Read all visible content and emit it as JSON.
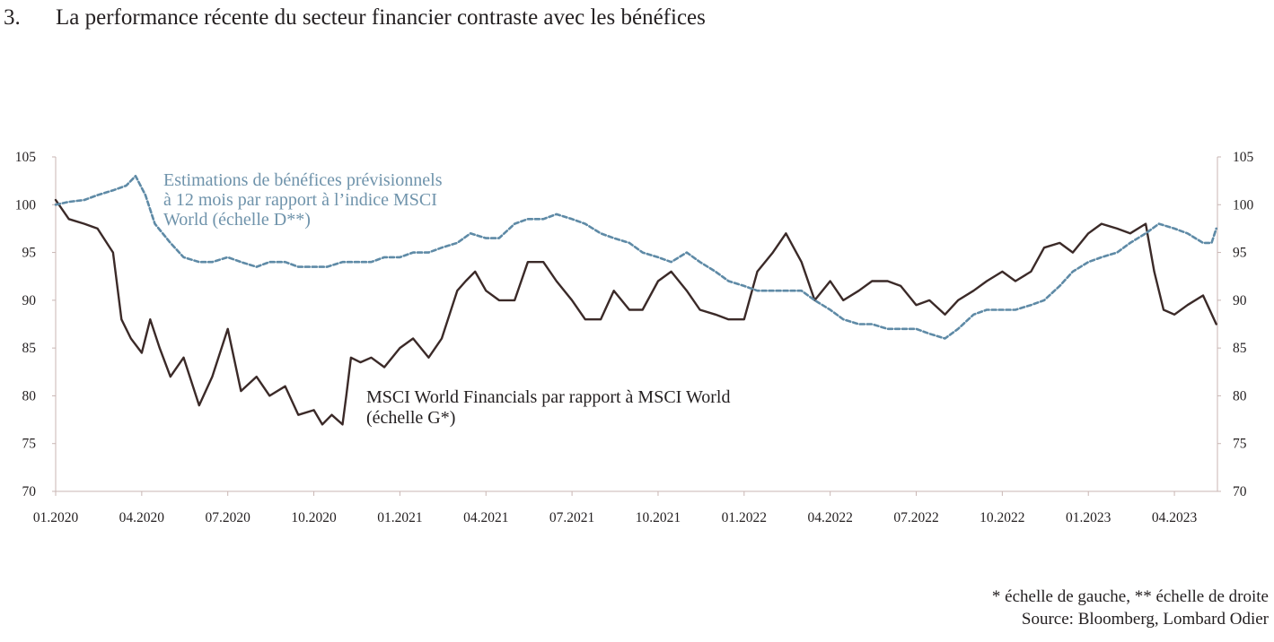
{
  "heading": {
    "number": "3.",
    "title": "La performance récente du secteur financier contraste avec les bénéfices"
  },
  "chart_data": {
    "type": "line",
    "title": "La performance récente du secteur financier contraste avec les bénéfices",
    "x_ticks": [
      "01.2020",
      "04.2020",
      "07.2020",
      "10.2020",
      "01.2021",
      "04.2021",
      "07.2021",
      "10.2021",
      "01.2022",
      "04.2022",
      "07.2022",
      "10.2022",
      "01.2023",
      "04.2023"
    ],
    "x_range": [
      "2020-01",
      "2023-05"
    ],
    "ylim_left": [
      70,
      105
    ],
    "ylim_right": [
      70,
      105
    ],
    "y_ticks_left": [
      70,
      75,
      80,
      85,
      90,
      95,
      100,
      105
    ],
    "y_ticks_right": [
      70,
      75,
      80,
      85,
      90,
      95,
      100,
      105
    ],
    "grid": false,
    "annotations": {
      "estimations": [
        "Estimations de bénéfices prévisionnels",
        "à 12 mois par rapport à l’indice MSCI",
        "World (échelle D**)"
      ],
      "financials": [
        "MSCI World Financials par rapport à MSCI World",
        "(échelle G*)"
      ]
    },
    "series": [
      {
        "axis": "left",
        "color": "#3b2a28",
        "style": "solid",
        "x": [
          "2020-01-01",
          "2020-01-15",
          "2020-02-01",
          "2020-02-15",
          "2020-03-01",
          "2020-03-10",
          "2020-03-20",
          "2020-04-01",
          "2020-04-10",
          "2020-04-20",
          "2020-05-01",
          "2020-05-15",
          "2020-06-01",
          "2020-06-15",
          "2020-07-01",
          "2020-07-15",
          "2020-08-01",
          "2020-08-15",
          "2020-09-01",
          "2020-09-15",
          "2020-10-01",
          "2020-10-10",
          "2020-10-20",
          "2020-11-01",
          "2020-11-05",
          "2020-11-10",
          "2020-11-20",
          "2020-12-01",
          "2020-12-15",
          "2021-01-01",
          "2021-01-15",
          "2021-02-01",
          "2021-02-15",
          "2021-03-01",
          "2021-03-10",
          "2021-03-20",
          "2021-04-01",
          "2021-04-15",
          "2021-05-01",
          "2021-05-15",
          "2021-06-01",
          "2021-06-15",
          "2021-07-01",
          "2021-07-15",
          "2021-08-01",
          "2021-08-15",
          "2021-09-01",
          "2021-09-15",
          "2021-10-01",
          "2021-10-15",
          "2021-11-01",
          "2021-11-15",
          "2021-12-01",
          "2021-12-15",
          "2022-01-01",
          "2022-01-15",
          "2022-02-01",
          "2022-02-15",
          "2022-03-01",
          "2022-03-15",
          "2022-04-01",
          "2022-04-15",
          "2022-05-01",
          "2022-05-15",
          "2022-06-01",
          "2022-06-15",
          "2022-07-01",
          "2022-07-15",
          "2022-08-01",
          "2022-08-15",
          "2022-09-01",
          "2022-09-15",
          "2022-10-01",
          "2022-10-15",
          "2022-11-01",
          "2022-11-15",
          "2022-12-01",
          "2022-12-15",
          "2023-01-01",
          "2023-01-15",
          "2023-02-01",
          "2023-02-15",
          "2023-03-01",
          "2023-03-10",
          "2023-03-20",
          "2023-04-01",
          "2023-04-15",
          "2023-05-01",
          "2023-05-15"
        ],
        "y": [
          100.5,
          98.5,
          98,
          97.5,
          95,
          88,
          86,
          84.5,
          88,
          85,
          82,
          84,
          79,
          82,
          87,
          80.5,
          82,
          80,
          81,
          78,
          78.5,
          77,
          78,
          77,
          80,
          84,
          83.5,
          84,
          83,
          85,
          86,
          84,
          86,
          91,
          92,
          93,
          91,
          90,
          90,
          94,
          94,
          92,
          90,
          88,
          88,
          91,
          89,
          89,
          92,
          93,
          91,
          89,
          88.5,
          88,
          88,
          93,
          95,
          97,
          94,
          90,
          92,
          90,
          91,
          92,
          92,
          91.5,
          89.5,
          90,
          88.5,
          90,
          91,
          92,
          93,
          92,
          93,
          95.5,
          96,
          95,
          97,
          98,
          97.5,
          97,
          98,
          93,
          89,
          88.5,
          89.5,
          90.5,
          87.5
        ]
      },
      {
        "axis": "right",
        "color": "#5e8aa6",
        "style": "dashed",
        "x": [
          "2020-01-01",
          "2020-01-15",
          "2020-02-01",
          "2020-02-15",
          "2020-03-01",
          "2020-03-15",
          "2020-03-25",
          "2020-04-05",
          "2020-04-15",
          "2020-05-01",
          "2020-05-15",
          "2020-06-01",
          "2020-06-15",
          "2020-07-01",
          "2020-07-15",
          "2020-08-01",
          "2020-08-15",
          "2020-09-01",
          "2020-09-15",
          "2020-10-01",
          "2020-10-15",
          "2020-11-01",
          "2020-11-15",
          "2020-12-01",
          "2020-12-15",
          "2021-01-01",
          "2021-01-15",
          "2021-02-01",
          "2021-02-15",
          "2021-03-01",
          "2021-03-15",
          "2021-04-01",
          "2021-04-15",
          "2021-05-01",
          "2021-05-15",
          "2021-06-01",
          "2021-06-15",
          "2021-07-01",
          "2021-07-15",
          "2021-08-01",
          "2021-08-15",
          "2021-09-01",
          "2021-09-15",
          "2021-10-01",
          "2021-10-15",
          "2021-11-01",
          "2021-11-15",
          "2021-12-01",
          "2021-12-15",
          "2022-01-01",
          "2022-01-15",
          "2022-02-01",
          "2022-02-15",
          "2022-03-01",
          "2022-03-15",
          "2022-04-01",
          "2022-04-15",
          "2022-05-01",
          "2022-05-15",
          "2022-06-01",
          "2022-06-15",
          "2022-07-01",
          "2022-07-15",
          "2022-08-01",
          "2022-08-15",
          "2022-09-01",
          "2022-09-15",
          "2022-10-01",
          "2022-10-15",
          "2022-11-01",
          "2022-11-15",
          "2022-12-01",
          "2022-12-15",
          "2023-01-01",
          "2023-01-15",
          "2023-02-01",
          "2023-02-15",
          "2023-03-01",
          "2023-03-15",
          "2023-04-01",
          "2023-04-15",
          "2023-05-01",
          "2023-05-10",
          "2023-05-15"
        ],
        "y": [
          100,
          100.3,
          100.5,
          101,
          101.5,
          102,
          103,
          101,
          98,
          96,
          94.5,
          94,
          94,
          94.5,
          94,
          93.5,
          94,
          94,
          93.5,
          93.5,
          93.5,
          94,
          94,
          94,
          94.5,
          94.5,
          95,
          95,
          95.5,
          96,
          97,
          96.5,
          96.5,
          98,
          98.5,
          98.5,
          99,
          98.5,
          98,
          97,
          96.5,
          96,
          95,
          94.5,
          94,
          95,
          94,
          93,
          92,
          91.5,
          91,
          91,
          91,
          91,
          90,
          89,
          88,
          87.5,
          87.5,
          87,
          87,
          87,
          86.5,
          86,
          87,
          88.5,
          89,
          89,
          89,
          89.5,
          90,
          91.5,
          93,
          94,
          94.5,
          95,
          96,
          97,
          98,
          97.5,
          97,
          96,
          96,
          97.5
        ]
      }
    ],
    "footnotes": [
      "* échelle de gauche, ** échelle de droite",
      "Source: Bloomberg, Lombard Odier"
    ]
  }
}
